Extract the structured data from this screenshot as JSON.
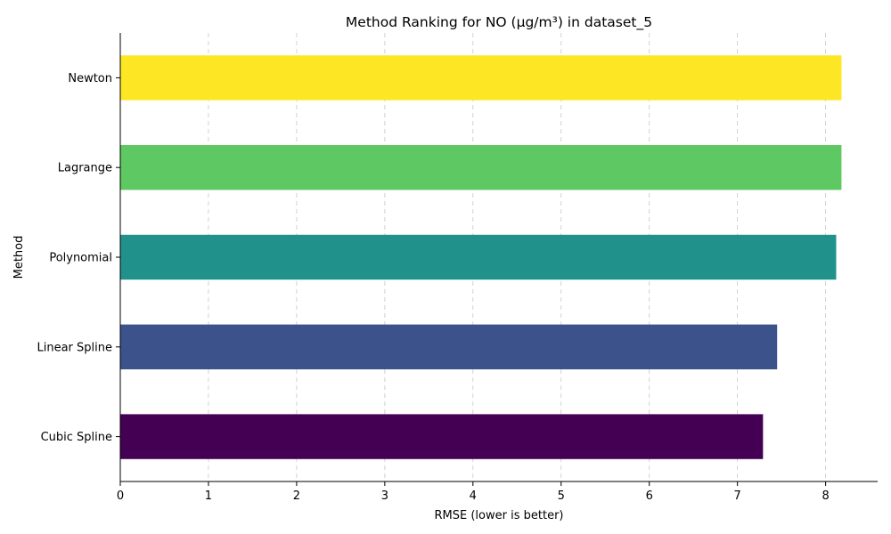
{
  "chart_data": {
    "type": "bar",
    "orientation": "horizontal",
    "title": "Method Ranking for NO (μg/m³) in dataset_5",
    "xlabel": "RMSE (lower is better)",
    "ylabel": "Method",
    "categories": [
      "Cubic Spline",
      "Linear Spline",
      "Polynomial",
      "Lagrange",
      "Newton"
    ],
    "values": [
      7.29,
      7.45,
      8.12,
      8.18,
      8.18
    ],
    "colors": [
      "#440154",
      "#3b528b",
      "#21918c",
      "#5ec962",
      "#fde725"
    ],
    "xlim": [
      0,
      8.59
    ],
    "xticks": [
      "0",
      "1",
      "2",
      "3",
      "4",
      "5",
      "6",
      "7",
      "8"
    ],
    "grid": {
      "x": true,
      "y": false,
      "style": "dashed"
    },
    "legend": "none"
  }
}
